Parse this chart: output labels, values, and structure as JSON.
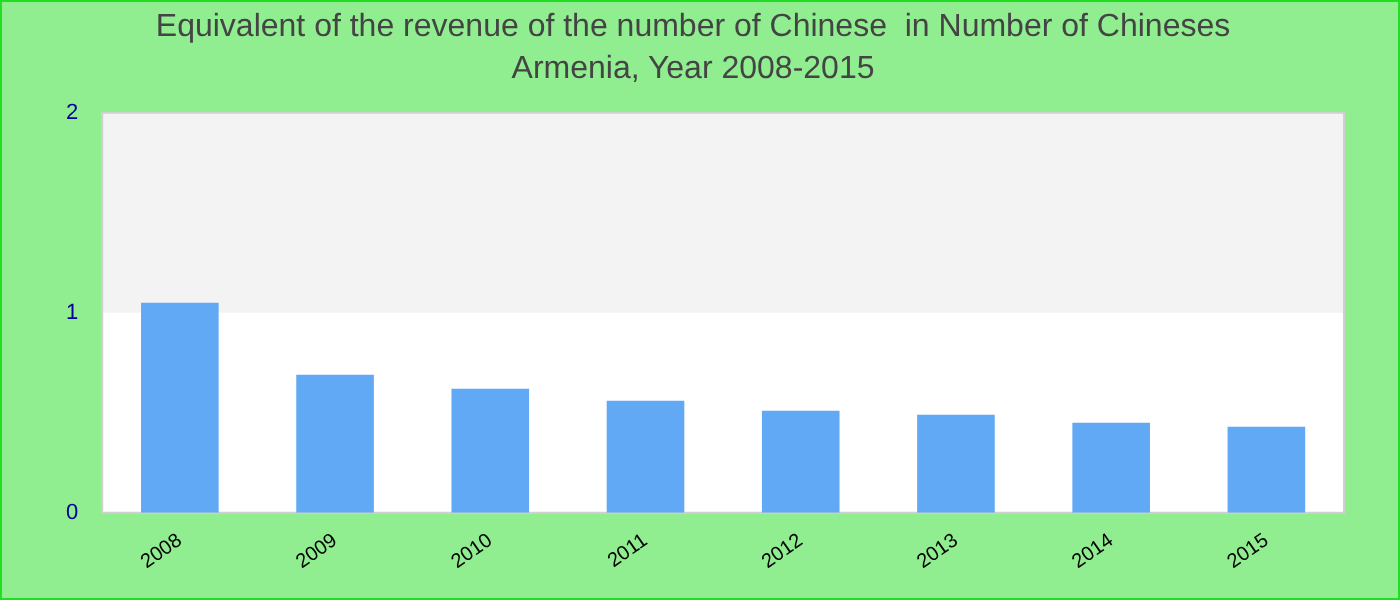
{
  "chart_data": {
    "type": "bar",
    "title": "Equivalent of the revenue of the number of Chinese  in Number of Chineses",
    "subtitle": "Armenia, Year 2008-2015",
    "categories": [
      "2008",
      "2009",
      "2010",
      "2011",
      "2012",
      "2013",
      "2014",
      "2015"
    ],
    "values": [
      1.05,
      0.69,
      0.62,
      0.56,
      0.51,
      0.49,
      0.45,
      0.43
    ],
    "color": "#61a8f5",
    "ylim": [
      0,
      2
    ],
    "yticks": [
      0,
      1,
      2
    ],
    "grid": false,
    "bands": [
      {
        "axis": "y",
        "from": 1,
        "to": 2,
        "color": "#f3f3f3"
      }
    ]
  }
}
